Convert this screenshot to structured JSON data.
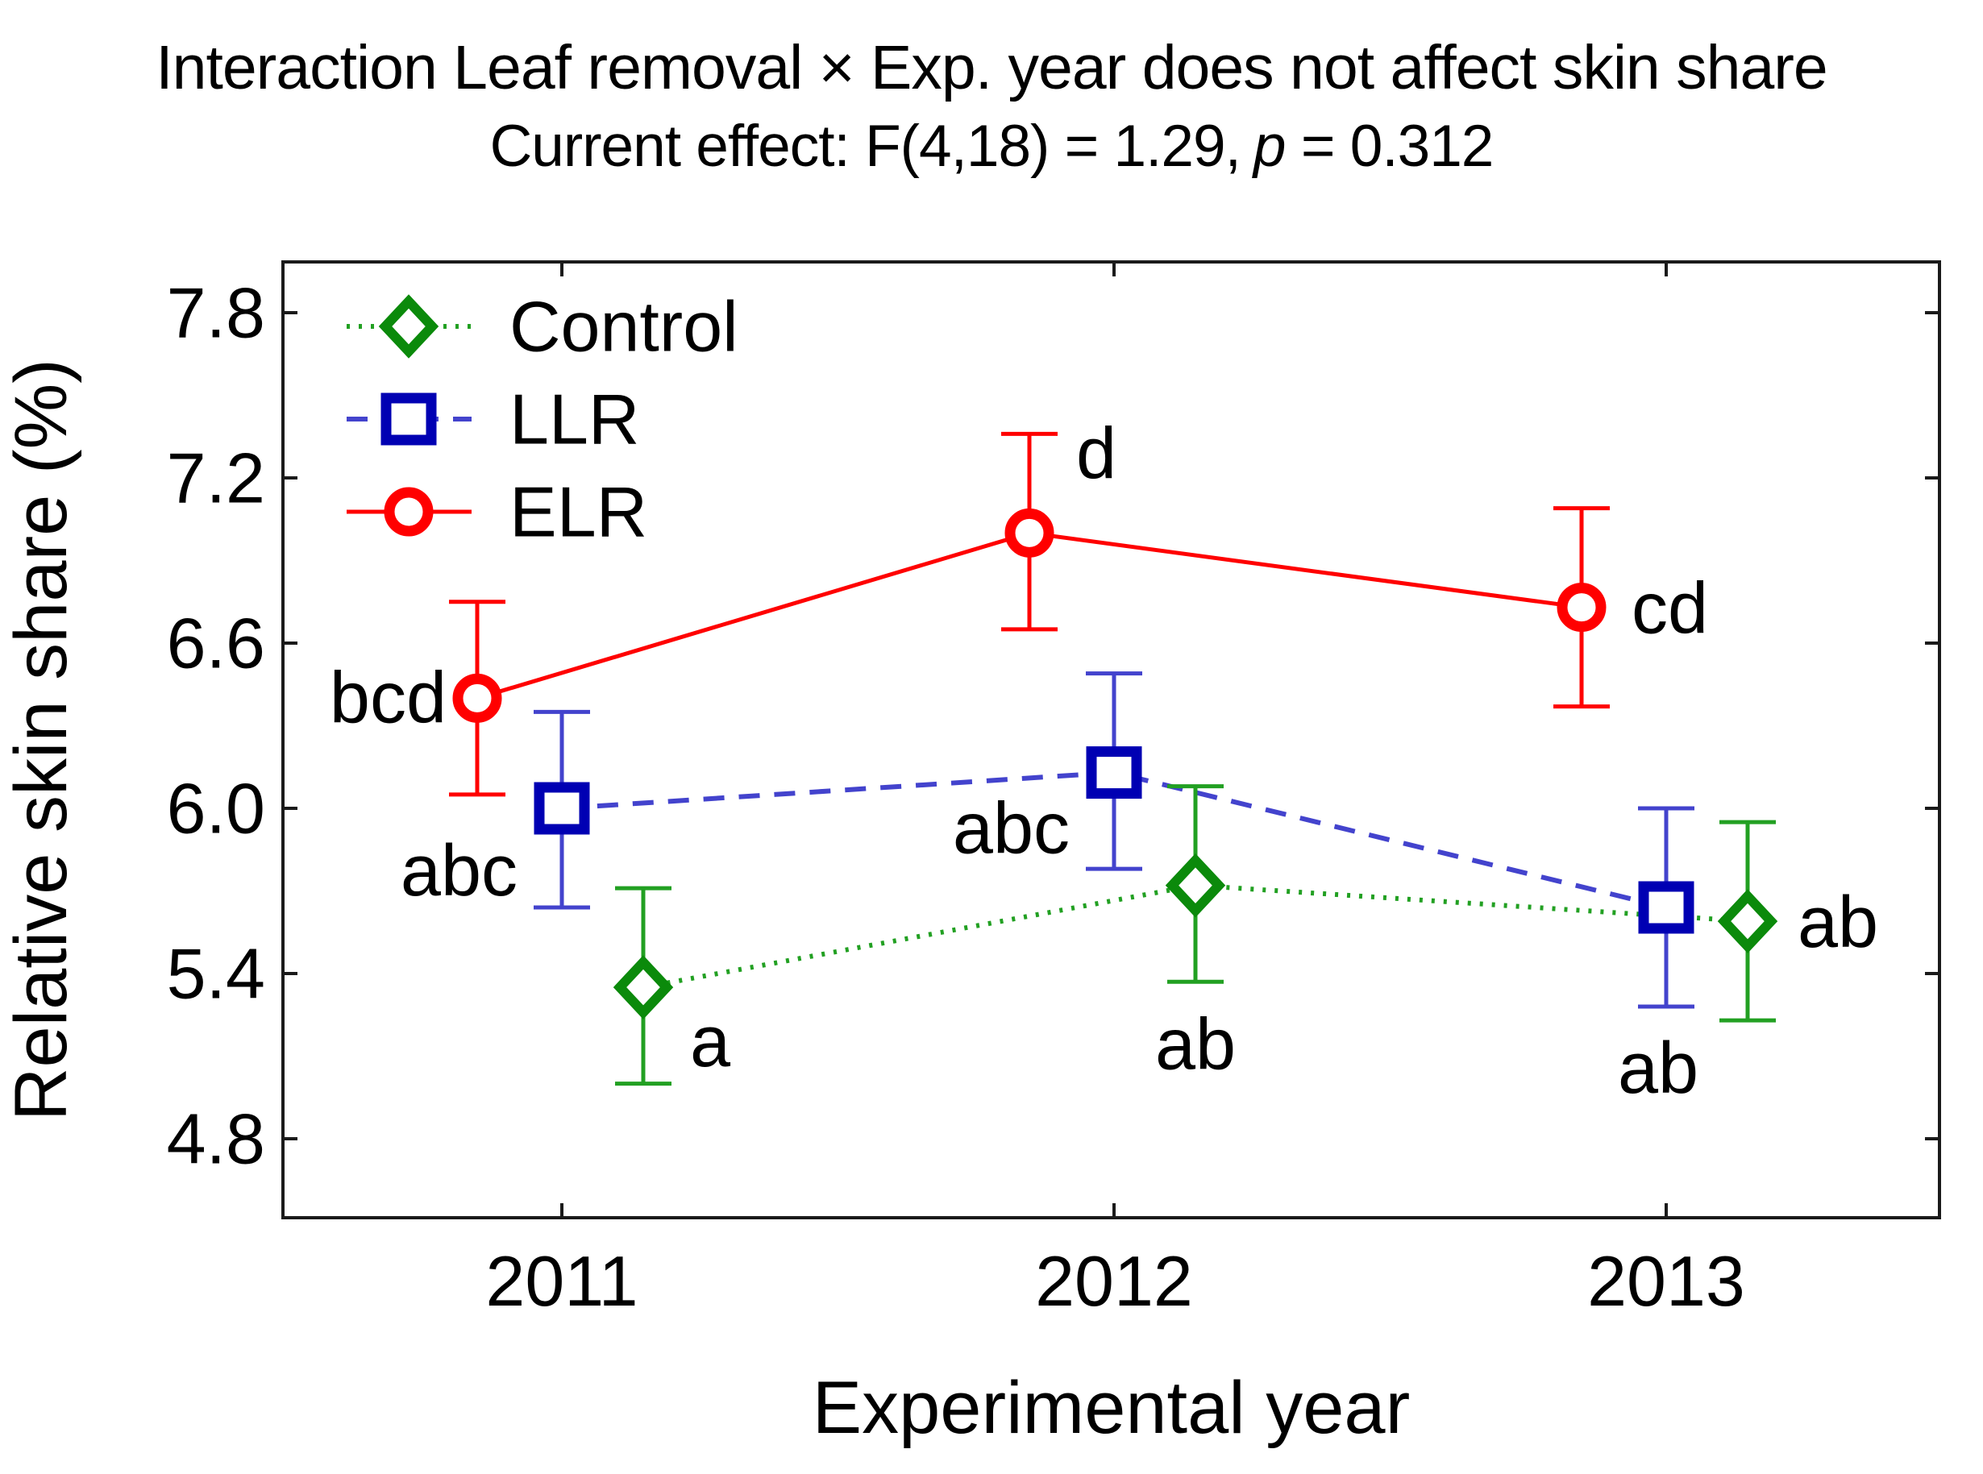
{
  "figure": {
    "title": "Interaction Leaf removal × Exp. year does not affect skin share",
    "subtitle": {
      "prefix": "Current effect: F(4,18) = 1.29,",
      "p_symbol": "p",
      "suffix": " = 0.312"
    }
  },
  "chart_data": {
    "type": "line",
    "title": "Interaction Leaf removal × Exp. year does not affect skin share",
    "subtitle": "Current effect: F(4,18) = 1.29, p = 0.312",
    "xlabel": "Experimental year",
    "ylabel": "Relative skin share (%)",
    "x": [
      2011,
      2012,
      2013
    ],
    "x_tick_labels": [
      "2011",
      "2012",
      "2013"
    ],
    "y_tick_labels": [
      "7.8",
      "7.2",
      "6.6",
      "6.0",
      "5.4",
      "4.8"
    ],
    "ylim": [
      4.5,
      8.0
    ],
    "grid": false,
    "legend_position": "top-left",
    "error_bar_style": "mean ± interval, capped",
    "series": [
      {
        "name": "Control",
        "marker": "diamond",
        "line_style": "dotted",
        "marker_color": "#0b8a0b",
        "line_color": "#22a022",
        "values": [
          5.35,
          5.72,
          5.59
        ],
        "error_low": [
          5.0,
          5.37,
          5.23
        ],
        "error_high": [
          5.71,
          6.08,
          5.95
        ],
        "letters": [
          "a",
          "ab",
          "ab"
        ]
      },
      {
        "name": "LLR",
        "marker": "square",
        "line_style": "dashed",
        "marker_color": "#0000b3",
        "line_color": "#4343cd",
        "values": [
          6.0,
          6.13,
          5.64
        ],
        "error_low": [
          5.64,
          5.78,
          5.28
        ],
        "error_high": [
          6.35,
          6.49,
          6.0
        ],
        "letters": [
          "abc",
          "abc",
          "ab"
        ]
      },
      {
        "name": "ELR",
        "marker": "circle",
        "line_style": "solid",
        "marker_color": "#ff0000",
        "line_color": "#ff0000",
        "values": [
          6.4,
          7.0,
          6.73
        ],
        "error_low": [
          6.05,
          6.65,
          6.37
        ],
        "error_high": [
          6.75,
          7.36,
          7.09
        ],
        "letters": [
          "bcd",
          "d",
          "cd"
        ]
      }
    ]
  }
}
